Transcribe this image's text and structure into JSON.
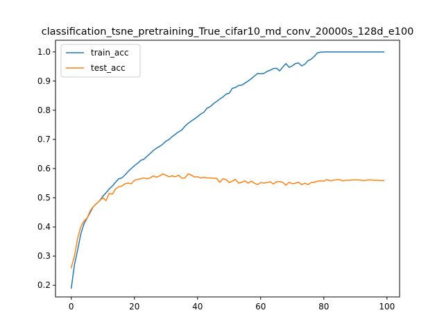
{
  "chart_data": {
    "type": "line",
    "title": "classification_tsne_pretraining_True_cifar10_md_conv_20000s_128d_e100",
    "xlabel": "",
    "ylabel": "",
    "xlim": [
      -5,
      104
    ],
    "ylim": [
      0.16,
      1.04
    ],
    "xticks": [
      0,
      20,
      40,
      60,
      80,
      100
    ],
    "yticks": [
      0.2,
      0.3,
      0.4,
      0.5,
      0.6,
      0.7,
      0.8,
      0.9,
      1.0
    ],
    "ytick_labels": [
      "0.2",
      "0.3",
      "0.4",
      "0.5",
      "0.6",
      "0.7",
      "0.8",
      "0.9",
      "1.0"
    ],
    "grid": false,
    "legend_position": "top-left",
    "series": [
      {
        "name": "train_acc",
        "color": "#1f77b4",
        "values": [
          0.19,
          0.27,
          0.32,
          0.375,
          0.41,
          0.43,
          0.45,
          0.47,
          0.48,
          0.49,
          0.505,
          0.517,
          0.53,
          0.54,
          0.553,
          0.565,
          0.568,
          0.578,
          0.59,
          0.6,
          0.61,
          0.618,
          0.628,
          0.632,
          0.642,
          0.652,
          0.662,
          0.67,
          0.676,
          0.684,
          0.694,
          0.7,
          0.71,
          0.718,
          0.726,
          0.732,
          0.745,
          0.755,
          0.763,
          0.77,
          0.778,
          0.787,
          0.793,
          0.807,
          0.812,
          0.822,
          0.83,
          0.838,
          0.845,
          0.855,
          0.858,
          0.875,
          0.878,
          0.885,
          0.886,
          0.893,
          0.9,
          0.908,
          0.917,
          0.926,
          0.925,
          0.926,
          0.933,
          0.937,
          0.943,
          0.944,
          0.935,
          0.948,
          0.96,
          0.947,
          0.952,
          0.96,
          0.962,
          0.952,
          0.958,
          0.97,
          0.975,
          0.985,
          0.997,
          0.999,
          1.0,
          1.0,
          1.0,
          1.0,
          1.0,
          1.0,
          1.0,
          1.0,
          1.0,
          1.0,
          1.0,
          1.0,
          1.0,
          1.0,
          1.0,
          1.0,
          1.0,
          1.0,
          1.0,
          1.0
        ]
      },
      {
        "name": "test_acc",
        "color": "#ff7f0e",
        "values": [
          0.26,
          0.3,
          0.36,
          0.4,
          0.42,
          0.43,
          0.455,
          0.47,
          0.48,
          0.49,
          0.5,
          0.49,
          0.515,
          0.512,
          0.53,
          0.538,
          0.54,
          0.548,
          0.55,
          0.548,
          0.56,
          0.563,
          0.565,
          0.568,
          0.565,
          0.568,
          0.575,
          0.57,
          0.575,
          0.582,
          0.577,
          0.572,
          0.575,
          0.572,
          0.577,
          0.567,
          0.568,
          0.582,
          0.578,
          0.571,
          0.572,
          0.568,
          0.57,
          0.568,
          0.568,
          0.567,
          0.567,
          0.553,
          0.565,
          0.563,
          0.552,
          0.557,
          0.563,
          0.55,
          0.553,
          0.558,
          0.55,
          0.557,
          0.55,
          0.545,
          0.552,
          0.55,
          0.552,
          0.555,
          0.547,
          0.555,
          0.555,
          0.553,
          0.543,
          0.553,
          0.548,
          0.55,
          0.553,
          0.545,
          0.55,
          0.545,
          0.552,
          0.553,
          0.557,
          0.558,
          0.557,
          0.562,
          0.558,
          0.56,
          0.562,
          0.562,
          0.558,
          0.56,
          0.56,
          0.561,
          0.561,
          0.561,
          0.56,
          0.559,
          0.561,
          0.561,
          0.56,
          0.56,
          0.559,
          0.559
        ]
      }
    ]
  }
}
